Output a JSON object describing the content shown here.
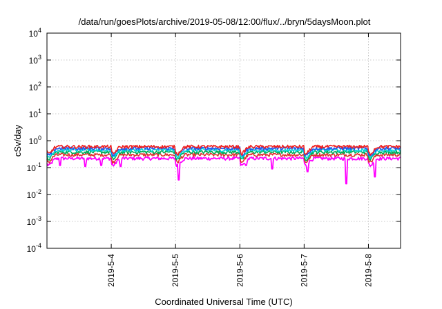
{
  "chart_data": {
    "type": "line",
    "title": "/data/run/goesPlots/archive/2019-05-08/12:00/flux/../bryn/5daysMoon.plot",
    "xlabel": "Coordinated Universal Time (UTC)",
    "ylabel": "cSv/day",
    "yscale": "log",
    "ylim": [
      0.0001,
      10000
    ],
    "xlim_days": [
      3.0,
      8.5
    ],
    "grid": true,
    "y_ticks": [
      {
        "base": "10",
        "exp": "-4",
        "value": 0.0001
      },
      {
        "base": "10",
        "exp": "-3",
        "value": 0.001
      },
      {
        "base": "10",
        "exp": "-2",
        "value": 0.01
      },
      {
        "base": "10",
        "exp": "-1",
        "value": 0.1
      },
      {
        "base": "10",
        "exp": "0",
        "value": 1
      },
      {
        "base": "10",
        "exp": "1",
        "value": 10
      },
      {
        "base": "10",
        "exp": "2",
        "value": 100
      },
      {
        "base": "10",
        "exp": "3",
        "value": 1000
      },
      {
        "base": "10",
        "exp": "4",
        "value": 10000
      }
    ],
    "x_ticks": [
      {
        "label": "2019-5-4",
        "day": 4
      },
      {
        "label": "2019-5-5",
        "day": 5
      },
      {
        "label": "2019-5-6",
        "day": 6
      },
      {
        "label": "2019-5-7",
        "day": 7
      },
      {
        "label": "2019-5-8",
        "day": 8
      }
    ],
    "series": [
      {
        "color": "#ff00ff",
        "level": 0.22,
        "dips": [
          [
            3.2,
            0.12
          ],
          [
            3.6,
            0.11
          ],
          [
            3.85,
            0.12
          ],
          [
            4.15,
            0.11
          ],
          [
            5.05,
            0.035
          ],
          [
            6.1,
            0.12
          ],
          [
            6.5,
            0.09
          ],
          [
            7.05,
            0.07
          ],
          [
            7.65,
            0.025
          ],
          [
            8.1,
            0.045
          ]
        ]
      },
      {
        "color": "#e03030",
        "level": 0.3,
        "dips": []
      },
      {
        "color": "#00aa55",
        "level": 0.38,
        "dips": []
      },
      {
        "color": "#00d8d8",
        "level": 0.45,
        "dips": []
      },
      {
        "color": "#2255ee",
        "level": 0.52,
        "dips": []
      },
      {
        "color": "#ee2020",
        "level": 0.6,
        "dips": []
      }
    ]
  }
}
